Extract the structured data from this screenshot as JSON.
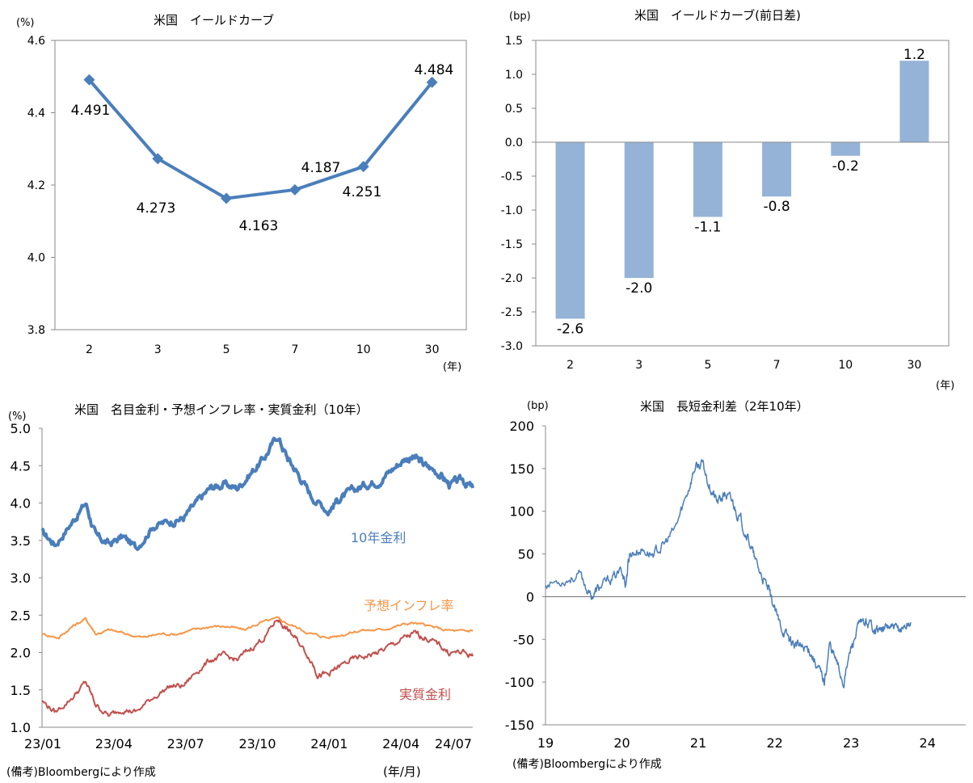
{
  "chart_data": [
    {
      "type": "line",
      "title": "米国　イールドカーブ",
      "ylabel": "(%)",
      "xlabel": "(年)",
      "categories": [
        "2",
        "3",
        "5",
        "7",
        "10",
        "30"
      ],
      "values": [
        4.491,
        4.273,
        4.163,
        4.187,
        4.251,
        4.484
      ],
      "data_labels": [
        "4.491",
        "4.273",
        "4.163",
        "4.187",
        "4.251",
        "4.484"
      ],
      "ylim": [
        3.8,
        4.6
      ],
      "yticks": [
        "3.8",
        "4.0",
        "4.2",
        "4.4",
        "4.6"
      ],
      "grid": false,
      "color": "#4a7ebb"
    },
    {
      "type": "bar",
      "title": "米国　イールドカーブ(前日差)",
      "ylabel": "(bp)",
      "xlabel": "(年)",
      "categories": [
        "2",
        "3",
        "5",
        "7",
        "10",
        "30"
      ],
      "values": [
        -2.6,
        -2.0,
        -1.1,
        -0.8,
        -0.2,
        1.2
      ],
      "data_labels": [
        "-2.6",
        "-2.0",
        "-1.1",
        "-0.8",
        "-0.2",
        "1.2"
      ],
      "ylim": [
        -3.0,
        1.5
      ],
      "yticks": [
        "1.5",
        "1.0",
        "0.5",
        "0.0",
        "-0.5",
        "-1.0",
        "-1.5",
        "-2.0",
        "-2.5",
        "-3.0"
      ],
      "grid": false,
      "color": "#95b3d7"
    },
    {
      "type": "line",
      "title": "米国　名目金利・予想インフレ率・実質金利（10年）",
      "ylabel": "(%)",
      "xlabel": "(年/月)",
      "x_ticks": [
        "23/01",
        "23/04",
        "23/07",
        "23/10",
        "24/01",
        "24/04",
        "24/07"
      ],
      "ylim": [
        1.0,
        5.0
      ],
      "yticks": [
        "5.0",
        "4.5",
        "4.0",
        "3.5",
        "3.0",
        "2.5",
        "2.0",
        "1.5",
        "1.0"
      ],
      "grid": false,
      "series": [
        {
          "name": "10年金利",
          "color": "#4a7ebb",
          "anchors": [
            [
              0,
              3.6
            ],
            [
              0.04,
              3.45
            ],
            [
              0.09,
              3.75
            ],
            [
              0.13,
              4.0
            ],
            [
              0.16,
              3.55
            ],
            [
              0.2,
              3.45
            ],
            [
              0.24,
              3.55
            ],
            [
              0.28,
              3.4
            ],
            [
              0.33,
              3.7
            ],
            [
              0.38,
              3.75
            ],
            [
              0.42,
              3.8
            ],
            [
              0.46,
              4.0
            ],
            [
              0.5,
              4.2
            ],
            [
              0.54,
              4.25
            ],
            [
              0.58,
              4.2
            ],
            [
              0.62,
              4.4
            ],
            [
              0.66,
              4.6
            ],
            [
              0.7,
              4.9
            ],
            [
              0.73,
              4.6
            ],
            [
              0.76,
              4.4
            ],
            [
              0.8,
              4.1
            ],
            [
              0.85,
              3.9
            ],
            [
              0.88,
              4.05
            ],
            [
              0.92,
              4.15
            ],
            [
              0.96,
              4.25
            ],
            [
              1.0,
              4.3
            ],
            [
              1.04,
              4.45
            ],
            [
              1.08,
              4.6
            ],
            [
              1.11,
              4.6
            ],
            [
              1.14,
              4.5
            ],
            [
              1.18,
              4.4
            ],
            [
              1.21,
              4.25
            ],
            [
              1.25,
              4.3
            ],
            [
              1.28,
              4.2
            ]
          ]
        },
        {
          "name": "予想インフレ率",
          "color": "#f79646",
          "anchors": [
            [
              0,
              2.25
            ],
            [
              0.05,
              2.2
            ],
            [
              0.09,
              2.35
            ],
            [
              0.13,
              2.45
            ],
            [
              0.16,
              2.25
            ],
            [
              0.2,
              2.3
            ],
            [
              0.25,
              2.25
            ],
            [
              0.3,
              2.2
            ],
            [
              0.35,
              2.25
            ],
            [
              0.4,
              2.25
            ],
            [
              0.45,
              2.3
            ],
            [
              0.5,
              2.35
            ],
            [
              0.55,
              2.35
            ],
            [
              0.6,
              2.3
            ],
            [
              0.65,
              2.4
            ],
            [
              0.7,
              2.45
            ],
            [
              0.75,
              2.35
            ],
            [
              0.8,
              2.25
            ],
            [
              0.85,
              2.2
            ],
            [
              0.9,
              2.25
            ],
            [
              0.95,
              2.3
            ],
            [
              1.0,
              2.3
            ],
            [
              1.05,
              2.35
            ],
            [
              1.1,
              2.4
            ],
            [
              1.15,
              2.35
            ],
            [
              1.2,
              2.3
            ],
            [
              1.25,
              2.28
            ],
            [
              1.28,
              2.3
            ]
          ]
        },
        {
          "name": "実質金利",
          "color": "#c0504d",
          "anchors": [
            [
              0,
              1.35
            ],
            [
              0.04,
              1.2
            ],
            [
              0.09,
              1.4
            ],
            [
              0.13,
              1.6
            ],
            [
              0.16,
              1.3
            ],
            [
              0.2,
              1.15
            ],
            [
              0.24,
              1.25
            ],
            [
              0.28,
              1.2
            ],
            [
              0.33,
              1.4
            ],
            [
              0.38,
              1.55
            ],
            [
              0.42,
              1.55
            ],
            [
              0.46,
              1.75
            ],
            [
              0.5,
              1.9
            ],
            [
              0.54,
              1.95
            ],
            [
              0.58,
              1.9
            ],
            [
              0.62,
              2.05
            ],
            [
              0.66,
              2.2
            ],
            [
              0.7,
              2.45
            ],
            [
              0.73,
              2.3
            ],
            [
              0.76,
              2.15
            ],
            [
              0.8,
              1.9
            ],
            [
              0.82,
              1.7
            ],
            [
              0.85,
              1.7
            ],
            [
              0.88,
              1.8
            ],
            [
              0.92,
              1.9
            ],
            [
              0.96,
              1.95
            ],
            [
              1.0,
              2.0
            ],
            [
              1.04,
              2.1
            ],
            [
              1.08,
              2.2
            ],
            [
              1.11,
              2.25
            ],
            [
              1.14,
              2.2
            ],
            [
              1.18,
              2.1
            ],
            [
              1.21,
              2.0
            ],
            [
              1.25,
              2.0
            ],
            [
              1.28,
              1.95
            ]
          ]
        }
      ]
    },
    {
      "type": "line",
      "title": "米国　長短金利差（2年10年）",
      "ylabel": "(bp)",
      "x_ticks": [
        "19",
        "20",
        "21",
        "22",
        "23",
        "24"
      ],
      "ylim": [
        -150,
        200
      ],
      "yticks": [
        "200",
        "150",
        "100",
        "50",
        "0",
        "-50",
        "-100",
        "-150"
      ],
      "grid": false,
      "series": [
        {
          "name": "",
          "color": "#4a7ebb",
          "anchors": [
            [
              0,
              15
            ],
            [
              0.25,
              20
            ],
            [
              0.45,
              25
            ],
            [
              0.6,
              0
            ],
            [
              0.7,
              10
            ],
            [
              0.85,
              20
            ],
            [
              1.0,
              30
            ],
            [
              1.05,
              15
            ],
            [
              1.1,
              50
            ],
            [
              1.25,
              55
            ],
            [
              1.4,
              50
            ],
            [
              1.55,
              60
            ],
            [
              1.7,
              80
            ],
            [
              1.85,
              120
            ],
            [
              1.95,
              150
            ],
            [
              2.05,
              155
            ],
            [
              2.15,
              130
            ],
            [
              2.25,
              110
            ],
            [
              2.35,
              120
            ],
            [
              2.45,
              110
            ],
            [
              2.55,
              90
            ],
            [
              2.65,
              70
            ],
            [
              2.75,
              40
            ],
            [
              2.85,
              20
            ],
            [
              2.95,
              0
            ],
            [
              3.05,
              -30
            ],
            [
              3.15,
              -45
            ],
            [
              3.25,
              -55
            ],
            [
              3.35,
              -60
            ],
            [
              3.45,
              -60
            ],
            [
              3.55,
              -80
            ],
            [
              3.65,
              -100
            ],
            [
              3.72,
              -55
            ],
            [
              3.82,
              -80
            ],
            [
              3.9,
              -100
            ],
            [
              4.0,
              -60
            ],
            [
              4.1,
              -35
            ],
            [
              4.2,
              -30
            ],
            [
              4.3,
              -35
            ],
            [
              4.4,
              -40
            ],
            [
              4.5,
              -35
            ],
            [
              4.6,
              -40
            ],
            [
              4.7,
              -35
            ],
            [
              4.78,
              -30
            ]
          ]
        }
      ]
    }
  ],
  "notes": {
    "left": "(備考)Bloombergにより作成",
    "right": "(備考)Bloombergにより作成"
  }
}
